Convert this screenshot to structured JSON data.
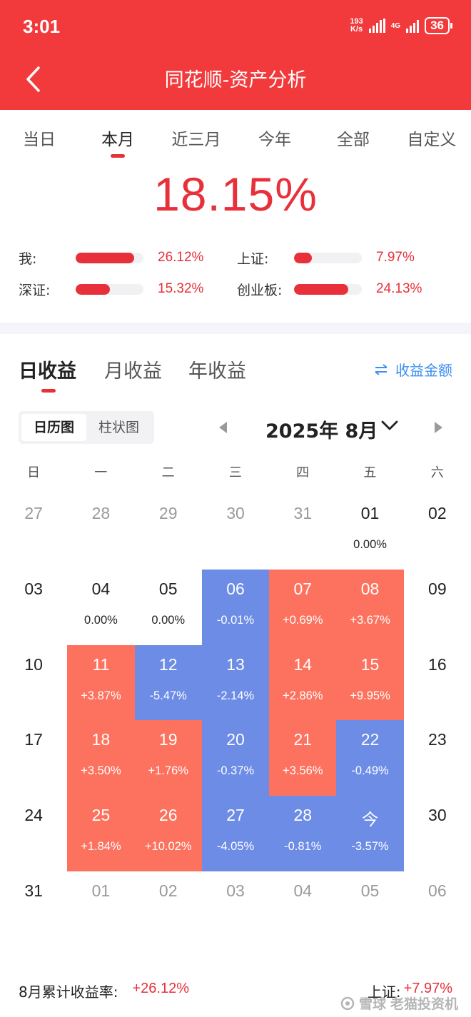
{
  "status_bar": {
    "time": "3:01",
    "net_speed_value": "193",
    "net_speed_unit": "K/s",
    "net_type": "4G",
    "battery": "36"
  },
  "header": {
    "title": "同花顺-资产分析"
  },
  "period_tabs": [
    "当日",
    "本月",
    "近三月",
    "今年",
    "全部",
    "自定义"
  ],
  "period_active_index": 1,
  "summary": {
    "total_return": "18.15%",
    "comparisons": [
      {
        "label": "我:",
        "value": "26.12%",
        "fill": 0.86
      },
      {
        "label": "上证:",
        "value": "7.97%",
        "fill": 0.26
      },
      {
        "label": "深证:",
        "value": "15.32%",
        "fill": 0.5
      },
      {
        "label": "创业板:",
        "value": "24.13%",
        "fill": 0.8
      }
    ]
  },
  "income_tabs": [
    "日收益",
    "月收益",
    "年收益"
  ],
  "amount_toggle_label": "收益金额",
  "view_toggle": [
    "日历图",
    "柱状图"
  ],
  "month_label": "2025年 8月",
  "weekdays": [
    "日",
    "一",
    "二",
    "三",
    "四",
    "五",
    "六"
  ],
  "calendar_rows": [
    [
      {
        "day": "27",
        "dim": true
      },
      {
        "day": "28",
        "dim": true
      },
      {
        "day": "29",
        "dim": true
      },
      {
        "day": "30",
        "dim": true
      },
      {
        "day": "31",
        "dim": true
      },
      {
        "day": "01",
        "value": "0.00%"
      },
      {
        "day": "02"
      }
    ],
    [
      {
        "day": "03"
      },
      {
        "day": "04",
        "value": "0.00%"
      },
      {
        "day": "05",
        "value": "0.00%"
      },
      {
        "day": "06",
        "value": "-0.01%",
        "type": "neg"
      },
      {
        "day": "07",
        "value": "+0.69%",
        "type": "pos"
      },
      {
        "day": "08",
        "value": "+3.67%",
        "type": "pos"
      },
      {
        "day": "09"
      }
    ],
    [
      {
        "day": "10"
      },
      {
        "day": "11",
        "value": "+3.87%",
        "type": "pos"
      },
      {
        "day": "12",
        "value": "-5.47%",
        "type": "neg"
      },
      {
        "day": "13",
        "value": "-2.14%",
        "type": "neg"
      },
      {
        "day": "14",
        "value": "+2.86%",
        "type": "pos"
      },
      {
        "day": "15",
        "value": "+9.95%",
        "type": "pos"
      },
      {
        "day": "16"
      }
    ],
    [
      {
        "day": "17"
      },
      {
        "day": "18",
        "value": "+3.50%",
        "type": "pos"
      },
      {
        "day": "19",
        "value": "+1.76%",
        "type": "pos"
      },
      {
        "day": "20",
        "value": "-0.37%",
        "type": "neg"
      },
      {
        "day": "21",
        "value": "+3.56%",
        "type": "pos"
      },
      {
        "day": "22",
        "value": "-0.49%",
        "type": "neg"
      },
      {
        "day": "23"
      }
    ],
    [
      {
        "day": "24"
      },
      {
        "day": "25",
        "value": "+1.84%",
        "type": "pos"
      },
      {
        "day": "26",
        "value": "+10.02%",
        "type": "pos"
      },
      {
        "day": "27",
        "value": "-4.05%",
        "type": "neg"
      },
      {
        "day": "28",
        "value": "-0.81%",
        "type": "neg"
      },
      {
        "day": "今",
        "value": "-3.57%",
        "type": "neg"
      },
      {
        "day": "30"
      }
    ],
    [
      {
        "day": "31"
      },
      {
        "day": "01",
        "dim": true
      },
      {
        "day": "02",
        "dim": true
      },
      {
        "day": "03",
        "dim": true
      },
      {
        "day": "04",
        "dim": true
      },
      {
        "day": "05",
        "dim": true
      },
      {
        "day": "06",
        "dim": true
      }
    ]
  ],
  "footer": {
    "cumulative_label": "8月累计收益率:",
    "cumulative_value": "+26.12%",
    "index_label": "上证:",
    "index_value": "+7.97%"
  },
  "watermark": {
    "brand": "雪球",
    "user": "老猫投资机"
  },
  "colors": {
    "header_red": "#f23a3c",
    "accent_red": "#e8303a",
    "gain_cell": "#fd725e",
    "loss_cell": "#6d8ce6",
    "link_blue": "#3c8ff2"
  }
}
